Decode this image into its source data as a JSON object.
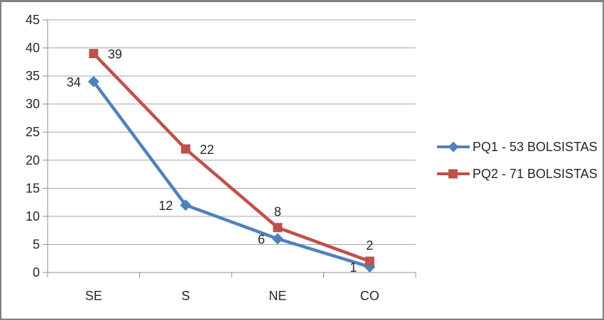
{
  "colors": {
    "background": "#ffffff",
    "frame_border": "#808080",
    "gridline": "#a6a6a6",
    "axis": "#8c8c8c",
    "text": "#262626",
    "series_blue": "#4f81bd",
    "series_red": "#c0504d"
  },
  "chart_data": {
    "type": "line",
    "title": "",
    "xlabel": "",
    "ylabel": "",
    "categories": [
      "SE",
      "S",
      "NE",
      "CO"
    ],
    "series": [
      {
        "name": "PQ1 - 53 BOLSISTAS",
        "values": [
          34,
          12,
          6,
          1
        ],
        "color": "#4f81bd",
        "marker": "diamond",
        "label_positions": [
          "left",
          "left",
          "left",
          "left"
        ]
      },
      {
        "name": "PQ2 - 71 BOLSISTAS",
        "values": [
          39,
          22,
          8,
          2
        ],
        "color": "#c0504d",
        "marker": "square",
        "label_positions": [
          "right",
          "right",
          "above",
          "above"
        ]
      }
    ],
    "ylim": [
      0,
      45
    ],
    "ytick_step": 5,
    "yticks": [
      0,
      5,
      10,
      15,
      20,
      25,
      30,
      35,
      40,
      45
    ],
    "grid": true,
    "legend_position": "right",
    "data_labels": true
  }
}
